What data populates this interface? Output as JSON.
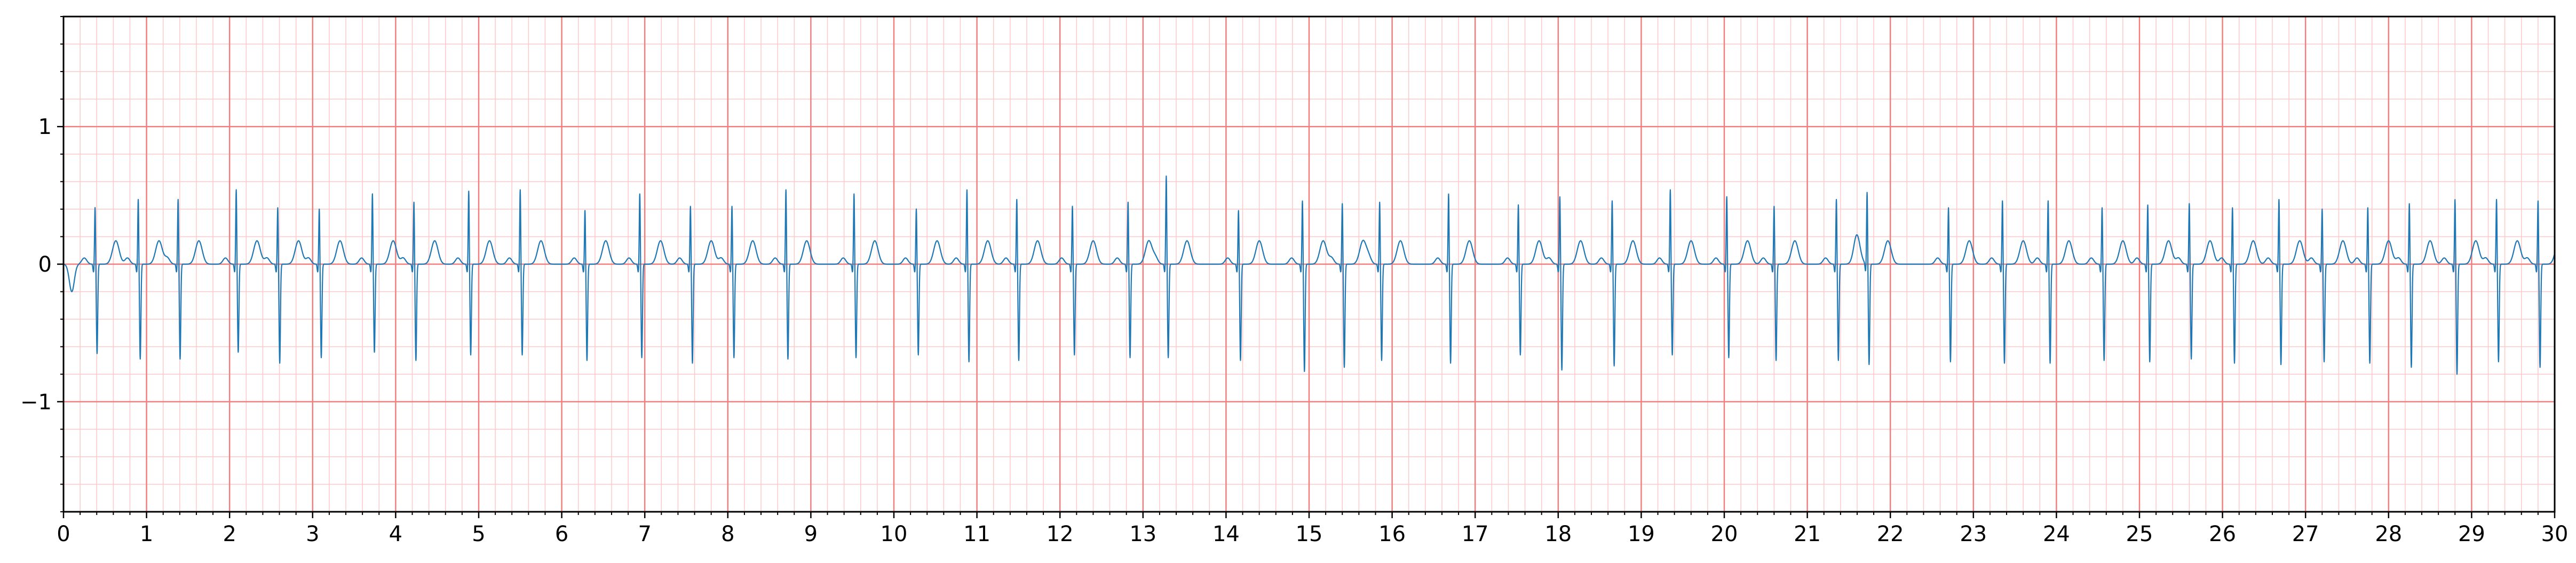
{
  "chart_data": {
    "type": "line",
    "title": "",
    "xlabel": "",
    "ylabel": "",
    "xlim": [
      0,
      30
    ],
    "ylim": [
      -1.8,
      1.8
    ],
    "x_ticks": [
      0,
      1,
      2,
      3,
      4,
      5,
      6,
      7,
      8,
      9,
      10,
      11,
      12,
      13,
      14,
      15,
      16,
      17,
      18,
      19,
      20,
      21,
      22,
      23,
      24,
      25,
      26,
      27,
      28,
      29,
      30
    ],
    "x_tick_labels": [
      "0",
      "1",
      "2",
      "3",
      "4",
      "5",
      "6",
      "7",
      "8",
      "9",
      "10",
      "11",
      "12",
      "13",
      "14",
      "15",
      "16",
      "17",
      "18",
      "19",
      "20",
      "21",
      "22",
      "23",
      "24",
      "25",
      "26",
      "27",
      "28",
      "29",
      "30"
    ],
    "y_ticks": [
      -1,
      0,
      1
    ],
    "y_tick_labels": [
      "−1",
      "0",
      "1"
    ],
    "grid": "on",
    "grid_major_x": 1,
    "grid_major_y": 1,
    "grid_minor_x": 0.2,
    "grid_minor_y": 0.2,
    "colors": {
      "trace": "#1f77b4",
      "grid_major": "#f08080",
      "grid_minor": "#ffc8c8",
      "axes": "#000000"
    },
    "series": [
      {
        "beat_times": [
          0.38,
          0.9,
          1.38,
          2.08,
          2.58,
          3.08,
          3.72,
          4.22,
          4.88,
          5.5,
          6.28,
          6.94,
          7.55,
          8.05,
          8.7,
          9.52,
          10.27,
          10.88,
          11.48,
          12.15,
          12.82,
          13.28,
          14.15,
          14.92,
          15.4,
          15.85,
          16.68,
          17.52,
          18.02,
          18.65,
          19.35,
          20.03,
          20.6,
          21.35,
          21.72,
          22.7,
          23.35,
          23.9,
          24.55,
          25.1,
          25.6,
          26.12,
          26.68,
          27.2,
          27.75,
          28.25,
          28.8,
          29.3,
          29.8
        ],
        "r_peaks": [
          0.42,
          0.48,
          0.48,
          0.55,
          0.42,
          0.41,
          0.52,
          0.46,
          0.54,
          0.55,
          0.4,
          0.52,
          0.43,
          0.43,
          0.55,
          0.52,
          0.41,
          0.55,
          0.48,
          0.43,
          0.46,
          0.65,
          0.4,
          0.47,
          0.45,
          0.46,
          0.52,
          0.44,
          0.5,
          0.47,
          0.55,
          0.5,
          0.43,
          0.48,
          0.53,
          0.42,
          0.47,
          0.47,
          0.42,
          0.44,
          0.45,
          0.42,
          0.48,
          0.41,
          0.42,
          0.45,
          0.48,
          0.48,
          0.47
        ],
        "s_troughs": [
          -0.65,
          -0.69,
          -0.69,
          -0.64,
          -0.72,
          -0.68,
          -0.64,
          -0.7,
          -0.66,
          -0.66,
          -0.7,
          -0.68,
          -0.72,
          -0.68,
          -0.69,
          -0.68,
          -0.66,
          -0.71,
          -0.7,
          -0.66,
          -0.68,
          -0.68,
          -0.7,
          -0.78,
          -0.75,
          -0.7,
          -0.72,
          -0.66,
          -0.77,
          -0.74,
          -0.66,
          -0.68,
          -0.7,
          -0.7,
          -0.73,
          -0.71,
          -0.72,
          -0.72,
          -0.7,
          -0.71,
          -0.69,
          -0.72,
          -0.73,
          -0.71,
          -0.72,
          -0.75,
          -0.8,
          -0.71,
          -0.75
        ]
      }
    ]
  }
}
